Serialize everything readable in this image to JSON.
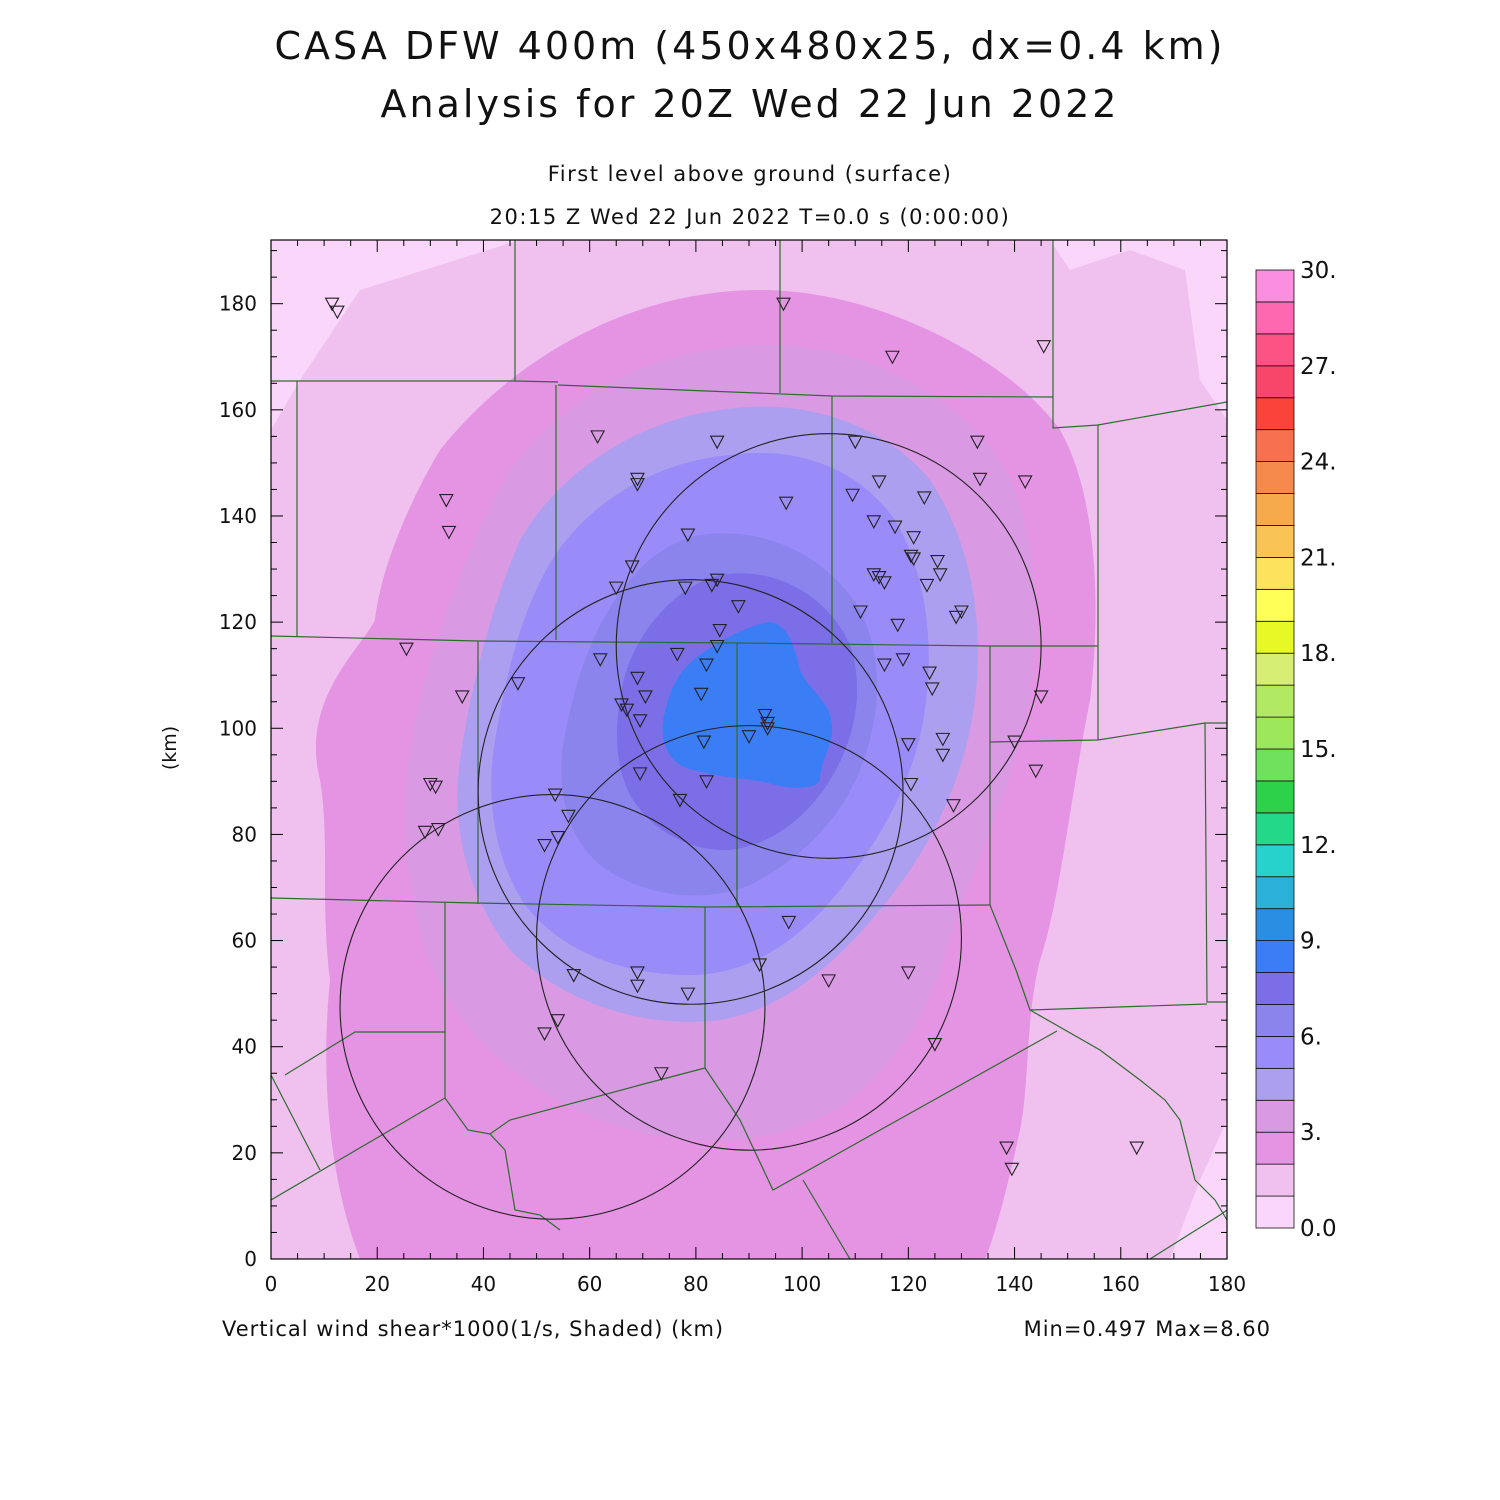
{
  "header": {
    "title_line1": "CASA DFW 400m (450x480x25, dx=0.4 km)",
    "title_line2": "Analysis for 20Z Wed 22 Jun 2022",
    "level": "First level above ground (surface)",
    "time": "20:15 Z Wed 22 Jun 2022   T=0.0 s (0:00:00)"
  },
  "footer": {
    "variable": "Vertical wind shear*1000(1/s, Shaded)  (km)",
    "stats": "Min=0.497 Max=8.60"
  },
  "axes": {
    "xlabel": "",
    "ylabel": "(km)",
    "xlim": [
      0,
      180
    ],
    "ylim": [
      0,
      192
    ],
    "xticks": [
      "0",
      "20",
      "40",
      "60",
      "80",
      "100",
      "120",
      "140",
      "160",
      "180"
    ],
    "yticks": [
      "0",
      "20",
      "40",
      "60",
      "80",
      "100",
      "120",
      "140",
      "160",
      "180"
    ]
  },
  "colorbar": {
    "labels": [
      "0.0",
      "3.",
      "6.",
      "9.",
      "12.",
      "15.",
      "18.",
      "21.",
      "24.",
      "27.",
      "30."
    ],
    "colors": [
      "#fbd6fb",
      "#f0c1ef",
      "#e593e3",
      "#d99ae3",
      "#ad9ff0",
      "#9a8cf8",
      "#8a84ec",
      "#7c6ee6",
      "#3a7df5",
      "#2a8ee2",
      "#2bb1d8",
      "#28d2cc",
      "#24d88a",
      "#2ed14a",
      "#6fe15c",
      "#9de75a",
      "#b2e962",
      "#d6ee74",
      "#e6f926",
      "#ffff58",
      "#fde35d",
      "#f9c455",
      "#f7aa4c",
      "#f58a4c",
      "#f77150",
      "#f9433b",
      "#f8456a",
      "#fd5384",
      "#fd68b1",
      "#fb8ede"
    ]
  },
  "map": {
    "contour_colors": {
      "c0": "#fbd6fb",
      "c1": "#f0c1ef",
      "c2": "#e593e3",
      "c3": "#d99ae3",
      "c4": "#ad9ff0",
      "c5": "#9a8cf8",
      "c6": "#8a84ec",
      "c7": "#7c6ee6",
      "c8": "#3a7df5"
    },
    "radar_rings": [
      {
        "cx": 105,
        "cy": 115.5,
        "r": 40
      },
      {
        "cx": 79,
        "cy": 88,
        "r": 40
      },
      {
        "cx": 90,
        "cy": 60.5,
        "r": 40
      },
      {
        "cx": 53,
        "cy": 47.5,
        "r": 40
      }
    ],
    "stations": [
      [
        11.5,
        180
      ],
      [
        12.5,
        178.5
      ],
      [
        61.5,
        155
      ],
      [
        84,
        154
      ],
      [
        96.5,
        180
      ],
      [
        117,
        170
      ],
      [
        145.5,
        172
      ],
      [
        33,
        143
      ],
      [
        33.5,
        137
      ],
      [
        69,
        147
      ],
      [
        69,
        146
      ],
      [
        97,
        142.5
      ],
      [
        110,
        154
      ],
      [
        114.5,
        146.5
      ],
      [
        109.5,
        144
      ],
      [
        123,
        143.5
      ],
      [
        133,
        154
      ],
      [
        133.5,
        147
      ],
      [
        142,
        146.5
      ],
      [
        113.5,
        139
      ],
      [
        117.5,
        138
      ],
      [
        121,
        136
      ],
      [
        78.5,
        136.5
      ],
      [
        68,
        130.5
      ],
      [
        65,
        126.5
      ],
      [
        84,
        128
      ],
      [
        83,
        127
      ],
      [
        78,
        126.5
      ],
      [
        125.5,
        131.5
      ],
      [
        126,
        129
      ],
      [
        120.5,
        132.5
      ],
      [
        121,
        132
      ],
      [
        113.5,
        129
      ],
      [
        114.5,
        128.5
      ],
      [
        115.5,
        127.5
      ],
      [
        123.5,
        127
      ],
      [
        88,
        123
      ],
      [
        111,
        122
      ],
      [
        130,
        122
      ],
      [
        129,
        121
      ],
      [
        118,
        119.5
      ],
      [
        84.5,
        118.5
      ],
      [
        84,
        115.5
      ],
      [
        25.5,
        115
      ],
      [
        62,
        113
      ],
      [
        76.5,
        114
      ],
      [
        82,
        112
      ],
      [
        115.5,
        112
      ],
      [
        119,
        113
      ],
      [
        124,
        110.5
      ],
      [
        124.5,
        107.5
      ],
      [
        46.5,
        108.5
      ],
      [
        69,
        109.5
      ],
      [
        36,
        106
      ],
      [
        70.5,
        106
      ],
      [
        81,
        106.5
      ],
      [
        145,
        106
      ],
      [
        66,
        104.5
      ],
      [
        67,
        103.5
      ],
      [
        69.5,
        101.5
      ],
      [
        93,
        102.5
      ],
      [
        93.5,
        101
      ],
      [
        93.5,
        100
      ],
      [
        90,
        98.5
      ],
      [
        81.5,
        97.5
      ],
      [
        120,
        97
      ],
      [
        126.5,
        98
      ],
      [
        126.5,
        95
      ],
      [
        140,
        97.5
      ],
      [
        144,
        92
      ],
      [
        69.5,
        91.5
      ],
      [
        82,
        90
      ],
      [
        120.5,
        89.5
      ],
      [
        30,
        89.5
      ],
      [
        31,
        89
      ],
      [
        77,
        86.5
      ],
      [
        53.5,
        87.5
      ],
      [
        56,
        83.5
      ],
      [
        29,
        80.5
      ],
      [
        31.5,
        81
      ],
      [
        54,
        79.5
      ],
      [
        51.5,
        78
      ],
      [
        128.5,
        85.5
      ],
      [
        97.5,
        63.5
      ],
      [
        92,
        55.5
      ],
      [
        57,
        53.5
      ],
      [
        69,
        54
      ],
      [
        69,
        51.5
      ],
      [
        78.5,
        50
      ],
      [
        105,
        52.5
      ],
      [
        120,
        54
      ],
      [
        54,
        45
      ],
      [
        51.5,
        42.5
      ],
      [
        125,
        40.5
      ],
      [
        73.5,
        35
      ],
      [
        138.5,
        21
      ],
      [
        139.5,
        17
      ],
      [
        163,
        21
      ]
    ]
  }
}
